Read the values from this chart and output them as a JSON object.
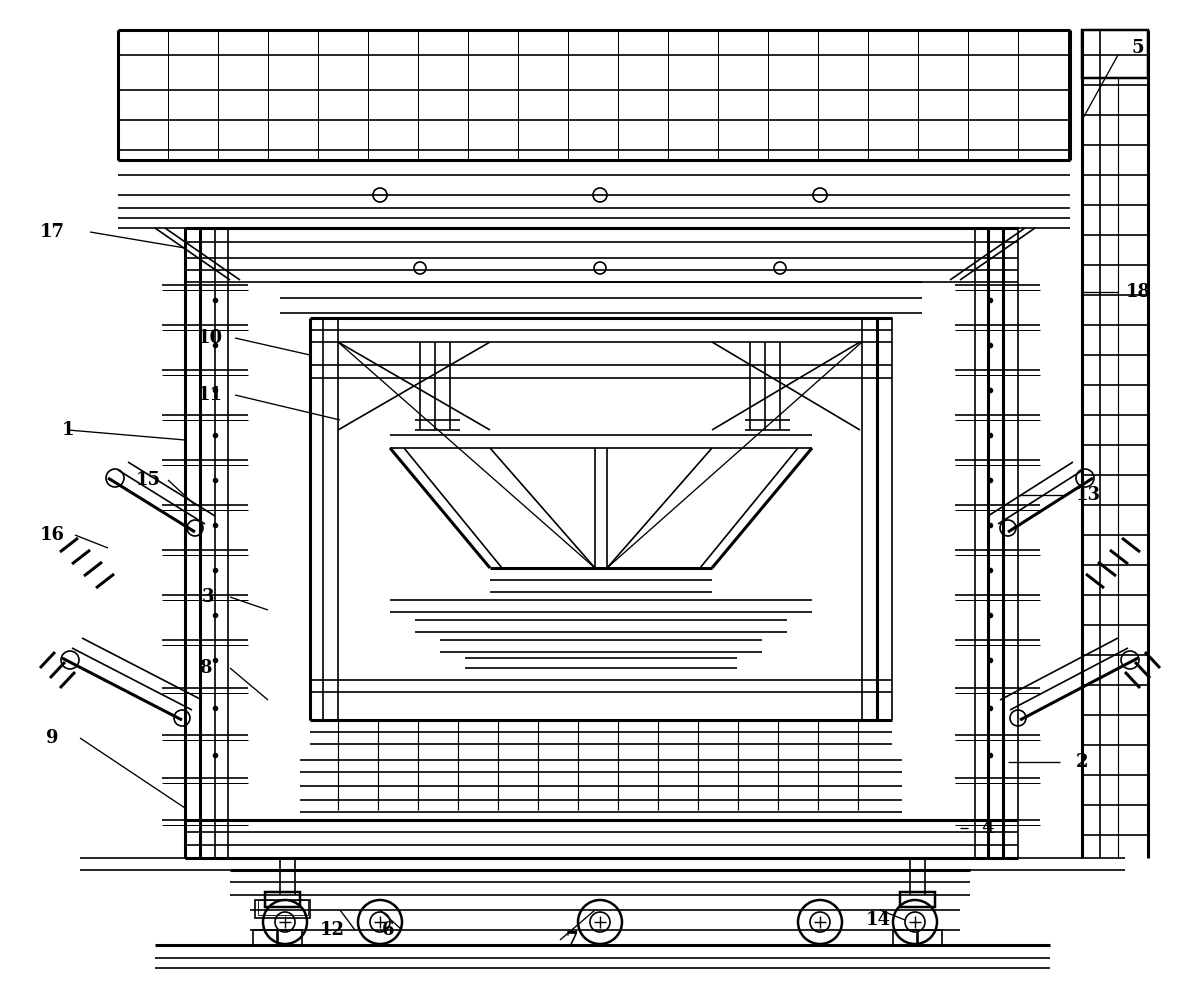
{
  "bg_color": "#ffffff",
  "line_color": "#000000",
  "lw": 1.2,
  "tlw": 2.2,
  "label_fontsize": 13,
  "labels": [
    [
      "1",
      68,
      430
    ],
    [
      "2",
      1082,
      762
    ],
    [
      "3",
      208,
      597
    ],
    [
      "4",
      988,
      828
    ],
    [
      "5",
      1138,
      48
    ],
    [
      "6",
      388,
      930
    ],
    [
      "7",
      572,
      940
    ],
    [
      "8",
      205,
      668
    ],
    [
      "9",
      52,
      738
    ],
    [
      "10",
      210,
      338
    ],
    [
      "11",
      210,
      395
    ],
    [
      "12",
      332,
      930
    ],
    [
      "13",
      1088,
      495
    ],
    [
      "14",
      878,
      920
    ],
    [
      "15",
      148,
      480
    ],
    [
      "16",
      52,
      535
    ],
    [
      "17",
      52,
      232
    ],
    [
      "18",
      1138,
      292
    ]
  ],
  "leader_lines": [
    [
      68,
      430,
      205,
      440
    ],
    [
      1082,
      762,
      1008,
      762
    ],
    [
      208,
      597,
      268,
      610
    ],
    [
      988,
      828,
      960,
      828
    ],
    [
      1110,
      55,
      1065,
      112
    ],
    [
      388,
      930,
      388,
      912
    ],
    [
      572,
      940,
      572,
      912
    ],
    [
      205,
      668,
      268,
      720
    ],
    [
      80,
      738,
      268,
      808
    ],
    [
      230,
      338,
      315,
      350
    ],
    [
      230,
      395,
      340,
      415
    ],
    [
      355,
      930,
      340,
      912
    ],
    [
      1065,
      495,
      1008,
      495
    ],
    [
      900,
      920,
      880,
      912
    ],
    [
      170,
      480,
      185,
      510
    ],
    [
      75,
      535,
      115,
      558
    ],
    [
      90,
      232,
      195,
      248
    ],
    [
      1110,
      292,
      1078,
      292
    ]
  ]
}
